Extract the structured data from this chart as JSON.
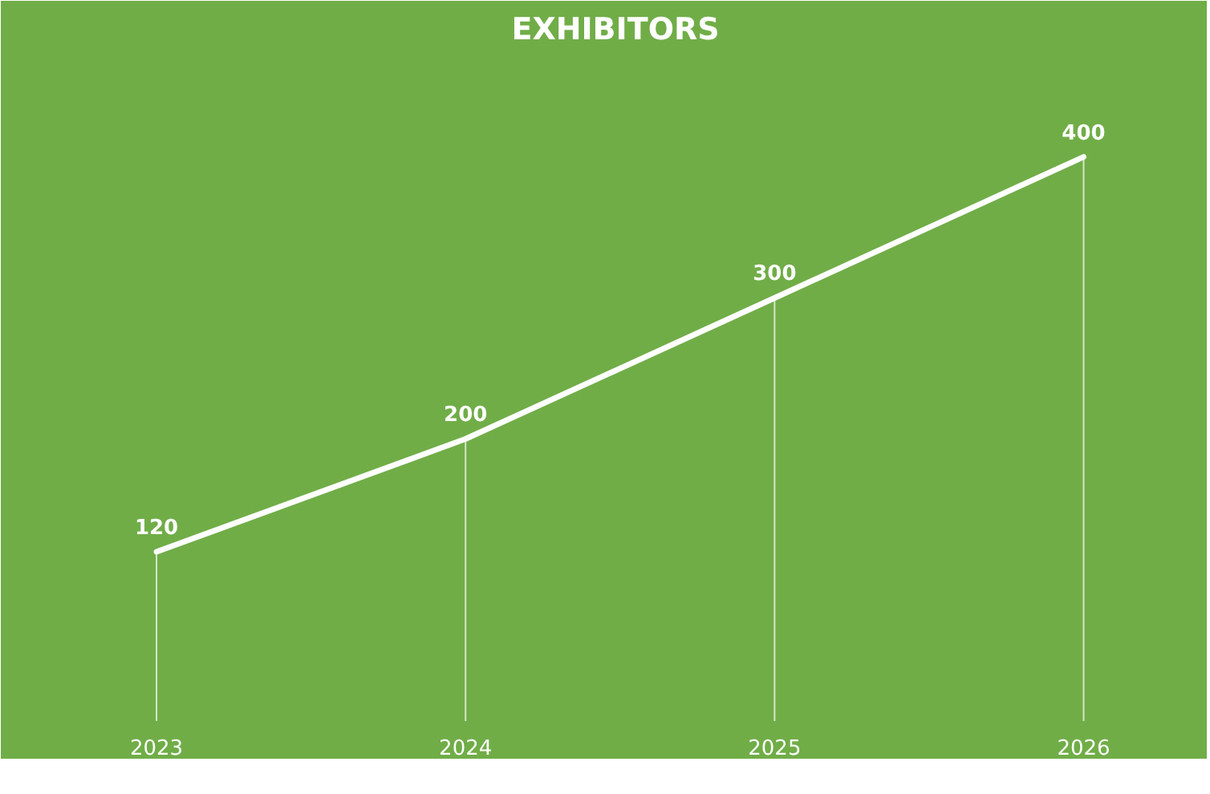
{
  "chart_data": {
    "type": "line",
    "title": "EXHIBITORS",
    "categories": [
      "2023",
      "2024",
      "2025",
      "2026"
    ],
    "series": [
      {
        "color": "#ffffff",
        "values": [
          120,
          200,
          300,
          400
        ]
      }
    ],
    "data_labels": true,
    "grid": "x",
    "tick_labels": "x",
    "line_style": "solid"
  }
}
